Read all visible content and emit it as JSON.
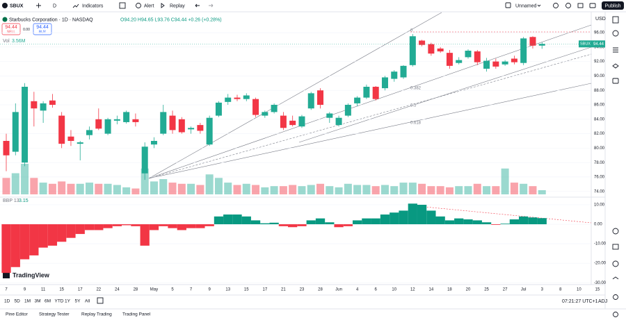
{
  "toolbar": {
    "symbol": "SBUX",
    "interval": "D",
    "indicators": "Indicators",
    "alert": "Alert",
    "replay": "Replay",
    "layout": "Unnamed",
    "publish": "Publish"
  },
  "legend": {
    "title": "Starbucks Corporation · 1D · NASDAQ",
    "ohlc": "O94.20 H94.65 L93.76 C94.44 +0.26 (+0.28%)",
    "sell_price": "94.44",
    "sell": "SELL",
    "spread": "0.00",
    "buy_price": "94.44",
    "buy": "BUY",
    "vol_name": "Vol",
    "vol_value": "3.56M",
    "bbp_name": "BBP 13",
    "bbp_value": "3.15",
    "logo": "TradingView"
  },
  "chart_data": {
    "type": "candlestick",
    "symbol_tag": "SBUX",
    "currency": "USD",
    "categories": [
      "7",
      null,
      "9",
      null,
      "11",
      null,
      "15",
      null,
      "17",
      null,
      "22",
      null,
      "24",
      null,
      "28",
      null,
      "May",
      null,
      "5",
      null,
      "7",
      null,
      "9",
      null,
      "13",
      null,
      "15",
      null,
      "17",
      null,
      "21",
      null,
      "23",
      null,
      "28",
      null,
      "Jun",
      null,
      "4",
      null,
      "6",
      null,
      "10",
      null,
      "12",
      null,
      "14",
      null,
      "18",
      null,
      "20",
      null,
      "25",
      null,
      "27",
      null,
      "Jul",
      null,
      "3"
    ],
    "future_categories": [
      "8",
      "10",
      "15"
    ],
    "open": [
      81.0,
      79.5,
      78.0,
      86.5,
      85.2,
      86.6,
      84.5,
      81.6,
      80.6,
      81.8,
      84.0,
      82.0,
      83.8,
      83.6,
      84.0,
      76.5,
      80.5,
      82.0,
      84.5,
      84.0,
      82.6,
      83.2,
      80.5,
      84.5,
      86.4,
      87.0,
      86.8,
      86.8,
      84.5,
      85.0,
      84.5,
      83.8,
      83.0,
      85.5,
      88.0,
      84.2,
      83.2,
      84.5,
      86.2,
      87.0,
      88.5,
      88.3,
      89.6,
      89.8,
      91.5,
      94.9,
      94.4,
      93.8,
      93.2,
      91.8,
      92.6,
      93.4,
      91.0,
      92.0,
      91.6,
      92.4,
      91.8,
      95.4,
      94.2
    ],
    "high": [
      82.0,
      86.2,
      89.0,
      87.8,
      86.5,
      87.5,
      85.0,
      82.5,
      81.0,
      83.0,
      85.5,
      84.2,
      84.5,
      85.2,
      84.8,
      80.8,
      81.5,
      86.0,
      85.2,
      84.3,
      83.0,
      83.5,
      84.5,
      86.5,
      87.5,
      87.4,
      87.6,
      87.0,
      85.2,
      86.2,
      85.0,
      84.5,
      84.6,
      87.8,
      88.3,
      85.0,
      84.5,
      86.2,
      87.2,
      88.8,
      88.6,
      90.0,
      90.8,
      91.5,
      95.8,
      95.0,
      94.6,
      94.0,
      93.6,
      92.6,
      93.7,
      93.6,
      92.5,
      92.4,
      92.2,
      92.8,
      95.4,
      95.5,
      94.65
    ],
    "low": [
      76.8,
      79.0,
      77.5,
      83.0,
      83.5,
      85.6,
      80.0,
      80.3,
      78.3,
      81.2,
      82.5,
      81.8,
      83.3,
      83.4,
      83.0,
      75.6,
      80.0,
      81.8,
      82.0,
      82.0,
      82.0,
      82.0,
      80.3,
      84.3,
      86.0,
      86.5,
      86.5,
      84.3,
      84.2,
      84.8,
      82.5,
      83.0,
      82.8,
      85.3,
      85.5,
      83.5,
      83.0,
      84.3,
      85.8,
      86.8,
      86.6,
      88.0,
      89.2,
      89.6,
      91.3,
      94.1,
      92.8,
      93.2,
      91.0,
      91.6,
      92.4,
      91.5,
      90.6,
      91.0,
      91.4,
      91.6,
      91.5,
      93.8,
      93.76
    ],
    "close": [
      79.0,
      85.0,
      88.5,
      85.5,
      86.2,
      86.0,
      80.6,
      81.0,
      80.8,
      82.5,
      82.7,
      84.0,
      84.0,
      85.0,
      83.6,
      80.2,
      81.0,
      85.0,
      82.5,
      82.2,
      82.8,
      82.4,
      84.2,
      86.3,
      87.0,
      86.8,
      87.3,
      84.6,
      85.0,
      86.0,
      82.8,
      83.2,
      84.4,
      87.6,
      86.0,
      84.8,
      84.2,
      86.0,
      87.0,
      88.5,
      86.8,
      89.8,
      90.6,
      91.4,
      95.5,
      94.3,
      93.1,
      93.4,
      91.4,
      92.2,
      93.5,
      91.9,
      92.1,
      91.3,
      92.0,
      91.9,
      95.2,
      94.2,
      94.44
    ],
    "volume": [
      14,
      18,
      26,
      14,
      10,
      9,
      11,
      9,
      9,
      10,
      9,
      9,
      8,
      6,
      5,
      22,
      11,
      13,
      10,
      9,
      9,
      8,
      17,
      14,
      10,
      8,
      9,
      8,
      6,
      7,
      7,
      8,
      7,
      8,
      9,
      7,
      6,
      9,
      8,
      8,
      7,
      8,
      7,
      10,
      10,
      9,
      7,
      7,
      6,
      7,
      7,
      9,
      7,
      7,
      22,
      10,
      9,
      7,
      3.56
    ],
    "bbp": [
      -25,
      -22,
      -18,
      -16,
      -12,
      -11,
      -9,
      -7,
      -5,
      -3,
      -3,
      -2,
      -1,
      -0.5,
      -1,
      -11,
      -3,
      -1,
      -2,
      -3,
      -2,
      -2,
      -1,
      4,
      5,
      5,
      4,
      2,
      0.5,
      0.8,
      -1,
      -1.5,
      -1,
      2,
      3,
      1,
      -1.5,
      -1,
      2,
      3,
      3,
      5,
      6,
      7,
      10.6,
      10,
      7,
      4,
      2,
      3,
      2.5,
      2,
      1,
      -0.3,
      0.3,
      2.5,
      4,
      3.5,
      3.15
    ],
    "up_color": "#22ab94",
    "down_color": "#f23645",
    "ylim": [
      73.4,
      98.6
    ],
    "yticks": [
      {
        "value": 74,
        "label": "74.00"
      },
      {
        "value": 76,
        "label": "76.00"
      },
      {
        "value": 78,
        "label": "78.00"
      },
      {
        "value": 80,
        "label": "80.00"
      },
      {
        "value": 82,
        "label": "82.00"
      },
      {
        "value": 84,
        "label": "84.00"
      },
      {
        "value": 86,
        "label": "86.00"
      },
      {
        "value": 88,
        "label": "88.00"
      },
      {
        "value": 90,
        "label": "90.00"
      },
      {
        "value": 92,
        "label": "92.00"
      },
      {
        "value": 94,
        "label": "94.00"
      },
      {
        "value": 96,
        "label": "96.00"
      }
    ],
    "bbp_ylim": [
      -31,
      12.5
    ],
    "bbp_yticks": [
      {
        "value": 10,
        "label": "10.00"
      },
      {
        "value": 0,
        "label": "0.00"
      },
      {
        "value": -10,
        "label": "-10.00"
      },
      {
        "value": -20,
        "label": "-20.00"
      },
      {
        "value": -30,
        "label": "-30.00"
      }
    ],
    "fib_labels": [
      "0",
      "0.382",
      "0.5",
      "0.618"
    ]
  },
  "footer": {
    "ranges": [
      "1D",
      "5D",
      "1M",
      "3M",
      "6M",
      "YTD",
      "1Y",
      "5Y",
      "All"
    ],
    "clock": "07:21:27 UTC+1",
    "adj": "ADJ",
    "tabs": [
      "Pine Editor",
      "Strategy Tester",
      "Replay Trading",
      "Trading Panel"
    ]
  }
}
